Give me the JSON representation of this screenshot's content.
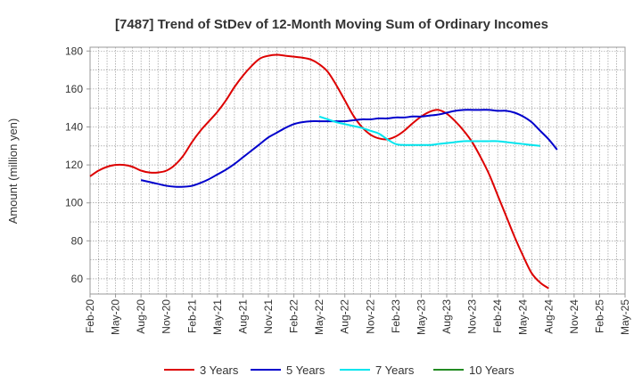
{
  "chart_data": {
    "type": "line",
    "title": "[7487]  Trend of StDev of 12-Month Moving Sum of Ordinary Incomes",
    "xlabel": "",
    "ylabel": "Amount (million yen)",
    "ylim": [
      52,
      182
    ],
    "yticks": [
      60,
      80,
      100,
      120,
      140,
      160,
      180
    ],
    "xticks": [
      "Feb-20",
      "May-20",
      "Aug-20",
      "Nov-20",
      "Feb-21",
      "May-21",
      "Aug-21",
      "Nov-21",
      "Feb-22",
      "May-22",
      "Aug-22",
      "Nov-22",
      "Feb-23",
      "May-23",
      "Aug-23",
      "Nov-23",
      "Feb-24",
      "May-24",
      "Aug-24",
      "Nov-24",
      "Feb-25",
      "May-25"
    ],
    "grid": true,
    "legend_position": "bottom",
    "series": [
      {
        "name": "3 Years",
        "color": "#dd0000",
        "start_index": 0,
        "values": [
          114,
          117,
          119,
          120,
          120,
          119,
          117,
          116,
          116,
          117,
          120,
          125,
          132,
          138,
          143,
          148,
          154,
          161,
          167,
          172,
          176,
          177.5,
          178,
          177.5,
          177,
          176.5,
          175.5,
          173,
          169,
          162,
          154,
          146,
          140,
          136,
          134,
          133.5,
          135,
          138,
          142,
          145.5,
          148,
          149,
          147,
          143,
          138,
          132,
          124,
          115,
          104,
          93,
          82,
          72,
          63,
          58,
          55
        ]
      },
      {
        "name": "5 Years",
        "color": "#0000cc",
        "start_index": 6,
        "values": [
          112,
          111,
          110,
          109,
          108.5,
          108.5,
          109,
          110.5,
          112.5,
          115,
          117.5,
          120.5,
          124,
          127.5,
          131,
          134.5,
          137,
          139.5,
          141.5,
          142.5,
          143,
          143,
          143,
          143,
          143,
          143.5,
          144,
          144,
          144.5,
          144.5,
          145,
          145,
          145.5,
          145.5,
          146,
          146.5,
          147.5,
          148.5,
          149,
          149,
          149,
          149,
          148.5,
          148.5,
          147.5,
          145.5,
          142.5,
          138,
          133.5,
          128
        ]
      },
      {
        "name": "7 Years",
        "color": "#00e5ee",
        "start_index": 27,
        "values": [
          145.5,
          144,
          142.5,
          141.5,
          140.5,
          139.5,
          138,
          136.5,
          133.5,
          131,
          130.5,
          130.5,
          130.5,
          130.5,
          131,
          131.5,
          132,
          132.5,
          132.5,
          132.5,
          132.5,
          132.5,
          132,
          131.5,
          131,
          130.5,
          130
        ]
      },
      {
        "name": "10 Years",
        "color": "#228b22",
        "start_index": 0,
        "values": []
      }
    ]
  }
}
